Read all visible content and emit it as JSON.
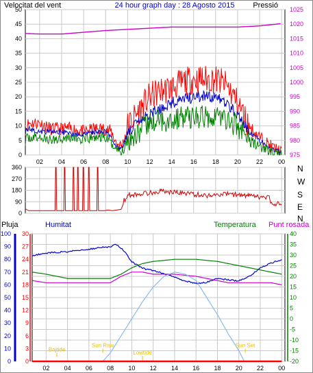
{
  "header": {
    "title": "24 hour graph day : 28 Agosto 2015",
    "left_label": "Velocitat del vent",
    "right_label": "Pressió"
  },
  "colors": {
    "red": "#ff0000",
    "darkred": "#cc0000",
    "blue": "#0000cc",
    "green": "#008000",
    "magenta": "#cc00cc",
    "lightblue": "#88bbee",
    "yellow": "#e8c000",
    "grid": "#c8c8c8"
  },
  "legend": {
    "rain": "Pluja",
    "humidity": "Humitat",
    "temperature": "Temperatura",
    "dewpoint": "Punt rosada"
  },
  "annotations": {
    "sun_rise": "Sun Rise",
    "sun_set": "Sun Set",
    "high_tide": "Bajtide",
    "low_tide": "Lowtide"
  },
  "x_ticks": [
    "02",
    "04",
    "06",
    "08",
    "10",
    "12",
    "14",
    "16",
    "18",
    "20",
    "22",
    "00"
  ],
  "chart_data": [
    {
      "type": "line",
      "name": "wind",
      "xlim": [
        0.7,
        24.3
      ],
      "y_left": {
        "ticks": [
          0,
          5,
          10,
          15,
          20,
          25,
          30,
          35,
          40,
          45,
          50
        ],
        "lim": [
          0,
          50
        ]
      },
      "y_right": {
        "ticks": [
          975,
          980,
          985,
          990,
          995,
          1000,
          1005,
          1010,
          1015,
          1020,
          1025
        ],
        "lim": [
          975,
          1025
        ]
      },
      "series": [
        {
          "key": "gust",
          "color": "red",
          "axis": "left",
          "x": [
            0.7,
            1,
            2,
            3,
            4,
            5,
            6,
            7,
            8,
            8.5,
            9,
            9.5,
            10,
            11,
            12,
            13,
            14,
            15,
            16,
            17,
            18,
            19,
            20,
            21,
            22,
            23,
            24
          ],
          "y": [
            9,
            11,
            11,
            9,
            9,
            9,
            8,
            9,
            9,
            8,
            4,
            3,
            10,
            15,
            20,
            22,
            23,
            25,
            26,
            26,
            26,
            24,
            18,
            10,
            6,
            3,
            1
          ]
        },
        {
          "key": "speed",
          "color": "blue",
          "axis": "left",
          "x": [
            0.7,
            1,
            2,
            3,
            4,
            5,
            6,
            7,
            8,
            8.5,
            9,
            9.5,
            10,
            11,
            12,
            13,
            14,
            15,
            16,
            17,
            18,
            19,
            20,
            21,
            22,
            23,
            24
          ],
          "y": [
            8,
            9,
            8,
            8,
            8,
            7,
            7,
            8,
            8,
            6,
            3,
            2,
            8,
            11,
            14,
            16,
            18,
            19,
            20,
            20,
            20,
            18,
            14,
            8,
            5,
            2,
            1
          ]
        },
        {
          "key": "avg",
          "color": "green",
          "axis": "left",
          "x": [
            0.7,
            1,
            2,
            3,
            4,
            5,
            6,
            7,
            8,
            8.5,
            9,
            9.5,
            10,
            11,
            12,
            13,
            14,
            15,
            16,
            17,
            18,
            19,
            20,
            21,
            22,
            23,
            24
          ],
          "y": [
            5,
            6,
            6,
            5,
            6,
            6,
            5,
            6,
            6,
            4,
            2,
            1,
            5,
            8,
            11,
            12,
            12,
            13,
            13,
            13,
            14,
            12,
            10,
            5,
            3,
            1,
            0
          ]
        },
        {
          "key": "pressure",
          "color": "magenta",
          "axis": "right",
          "x": [
            0.7,
            2,
            4,
            6,
            8,
            10,
            12,
            14,
            16,
            18,
            20,
            22,
            23,
            24
          ],
          "y": [
            1016.8,
            1016.6,
            1016.6,
            1017.2,
            1017.8,
            1018.2,
            1018.6,
            1019.0,
            1019.0,
            1019.0,
            1019.0,
            1019.4,
            1019.8,
            1020.2
          ]
        }
      ]
    },
    {
      "type": "line",
      "name": "wind-direction",
      "xlim": [
        0.7,
        24.3
      ],
      "y_left": {
        "ticks": [
          0,
          90,
          180,
          270,
          360
        ],
        "lim": [
          0,
          360
        ]
      },
      "y_right": {
        "ticks": [
          "N",
          "W",
          "S",
          "E",
          "N"
        ]
      },
      "series": [
        {
          "key": "direction",
          "color": "darkred",
          "axis": "left",
          "x": [
            0.7,
            1,
            3,
            3.4,
            3.45,
            3.5,
            3.55,
            4.2,
            4.25,
            4.3,
            4.35,
            5,
            5.05,
            5.1,
            5.15,
            5.4,
            5.45,
            5.5,
            5.55,
            5.9,
            5.95,
            6,
            6.05,
            6.4,
            6.45,
            6.5,
            6.55,
            7.2,
            7.25,
            7.3,
            7.35,
            7.9,
            8.2,
            8.6,
            9.4,
            9.6,
            10,
            11,
            12,
            13,
            14,
            15,
            16,
            17,
            18,
            19,
            20,
            21,
            22,
            22.9,
            23,
            24
          ],
          "y": [
            35,
            20,
            20,
            20,
            360,
            360,
            20,
            20,
            360,
            360,
            20,
            20,
            360,
            360,
            20,
            20,
            360,
            360,
            20,
            20,
            360,
            360,
            20,
            20,
            360,
            360,
            20,
            20,
            360,
            360,
            20,
            20,
            25,
            20,
            30,
            90,
            140,
            150,
            160,
            175,
            165,
            160,
            150,
            140,
            145,
            150,
            145,
            135,
            125,
            120,
            75,
            70
          ]
        }
      ]
    },
    {
      "type": "line",
      "name": "temperature-humidity",
      "xlim": [
        0.7,
        24.3
      ],
      "y_rain": {
        "ticks": [
          0,
          3,
          6,
          9,
          12,
          15,
          18,
          21,
          24,
          27,
          30
        ],
        "lim": [
          0,
          30
        ]
      },
      "y_humidity": {
        "ticks": [
          0,
          10,
          20,
          30,
          40,
          50,
          60,
          70,
          80,
          90,
          100
        ],
        "lim": [
          0,
          100
        ]
      },
      "y_temp": {
        "ticks": [
          -20,
          -15,
          -10,
          -5,
          0,
          5,
          10,
          15,
          20,
          25,
          30,
          35,
          40
        ],
        "lim": [
          -20,
          40
        ]
      },
      "series": [
        {
          "key": "humidity",
          "color": "blue",
          "axis": "humidity",
          "x": [
            0.7,
            2,
            4,
            6,
            8,
            8.5,
            9,
            9.5,
            10,
            11,
            12,
            13,
            14,
            15,
            16,
            17,
            18,
            19,
            20,
            21,
            22,
            23,
            24
          ],
          "y": [
            83,
            85,
            86,
            88,
            90,
            92,
            89,
            84,
            78,
            73,
            71,
            69,
            66,
            63,
            61,
            62,
            65,
            64,
            63,
            67,
            73,
            77,
            80
          ]
        },
        {
          "key": "temperature",
          "color": "green",
          "axis": "temp",
          "x": [
            0.7,
            2,
            4,
            6,
            8,
            9,
            10,
            11,
            12,
            13,
            14,
            15,
            16,
            17,
            18,
            19,
            20,
            21,
            22,
            23,
            24
          ],
          "y": [
            22,
            21,
            19,
            19,
            19,
            21,
            24,
            26,
            27,
            27.5,
            28,
            28,
            28,
            27.5,
            27,
            26,
            25,
            24,
            23,
            22,
            21
          ]
        },
        {
          "key": "dewpoint",
          "color": "magenta",
          "axis": "temp",
          "x": [
            0.7,
            2,
            4,
            6,
            8,
            9,
            10,
            11,
            12,
            13,
            14,
            15,
            16,
            17,
            18,
            19,
            20,
            21,
            22,
            23,
            24
          ],
          "y": [
            18,
            17,
            17,
            17,
            17,
            20,
            22,
            22,
            21,
            21,
            21,
            20.5,
            20,
            19,
            18,
            17,
            17,
            17,
            17,
            17,
            16
          ]
        },
        {
          "key": "solar",
          "color": "lightblue",
          "axis": "temp",
          "x": [
            7.3,
            8,
            9,
            10,
            11,
            12,
            13,
            14,
            15,
            16,
            17,
            18,
            19,
            20,
            20.5
          ],
          "y": [
            -20,
            -16,
            -8,
            0,
            8,
            15,
            20,
            22,
            21,
            18,
            10,
            2,
            -7,
            -15,
            -20
          ]
        },
        {
          "key": "rain",
          "color": "red",
          "axis": "rain",
          "x": [
            0.7,
            24
          ],
          "y": [
            0,
            0
          ]
        }
      ],
      "markers": [
        {
          "label_key": "sun_rise",
          "x": 7.3,
          "y": 3.3,
          "axis": "rain"
        },
        {
          "label_key": "sun_set",
          "x": 20.6,
          "y": 3.3,
          "axis": "rain"
        },
        {
          "label_key": "high_tide",
          "x": 3,
          "y": 2.3,
          "axis": "rain"
        },
        {
          "label_key": "low_tide",
          "x": 11,
          "y": 1.6,
          "axis": "rain"
        }
      ]
    }
  ]
}
